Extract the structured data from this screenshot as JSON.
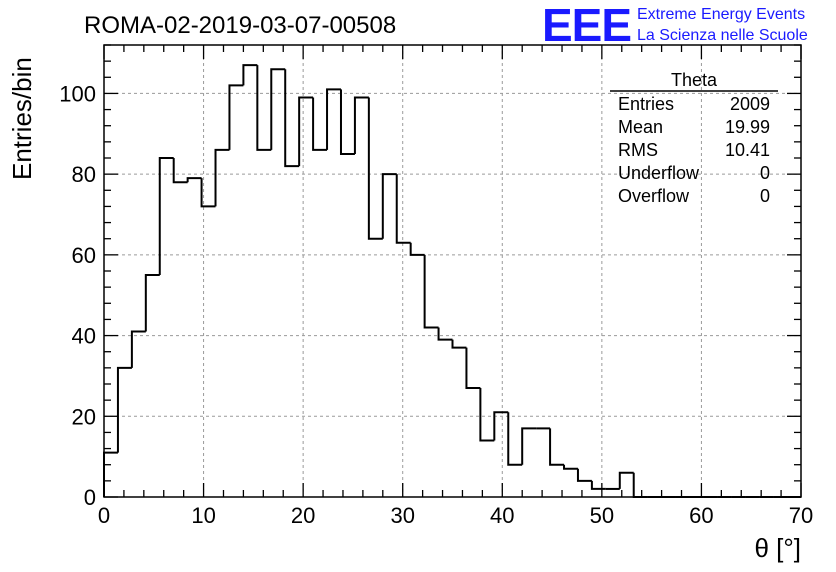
{
  "chart_data": {
    "type": "histogram",
    "title": "ROMA-02-2019-03-07-00508",
    "xlabel": "θ [°]",
    "ylabel": "Entries/bin",
    "xlim": [
      0,
      70
    ],
    "ylim": [
      0,
      112
    ],
    "grid": true,
    "bin_width": 1.4,
    "x_ticks": [
      0,
      10,
      20,
      30,
      40,
      50,
      60,
      70
    ],
    "y_ticks": [
      0,
      20,
      40,
      60,
      80,
      100
    ],
    "bin_edges_start": 0,
    "values": [
      11,
      32,
      41,
      55,
      84,
      78,
      79,
      72,
      86,
      102,
      107,
      86,
      106,
      82,
      99,
      86,
      101,
      85,
      99,
      64,
      80,
      63,
      60,
      42,
      39,
      37,
      27,
      14,
      21,
      8,
      17,
      17,
      8,
      7,
      4,
      2,
      2,
      6,
      0,
      0,
      0,
      0,
      0,
      0,
      0,
      0,
      0,
      0,
      0,
      0
    ],
    "stats_box": {
      "name": "Theta",
      "rows": [
        {
          "label": "Entries",
          "value": "2009"
        },
        {
          "label": "Mean",
          "value": "19.99"
        },
        {
          "label": "RMS",
          "value": "10.41"
        },
        {
          "label": "Underflow",
          "value": "0"
        },
        {
          "label": "Overflow",
          "value": "0"
        }
      ]
    }
  },
  "logo": {
    "mark": "EEE",
    "line1": "Extreme Energy Events",
    "line2": "La Scienza nelle Scuole"
  },
  "colors": {
    "logo": "#1a1aff",
    "line": "#000000",
    "grid": "#9a9a9a"
  }
}
